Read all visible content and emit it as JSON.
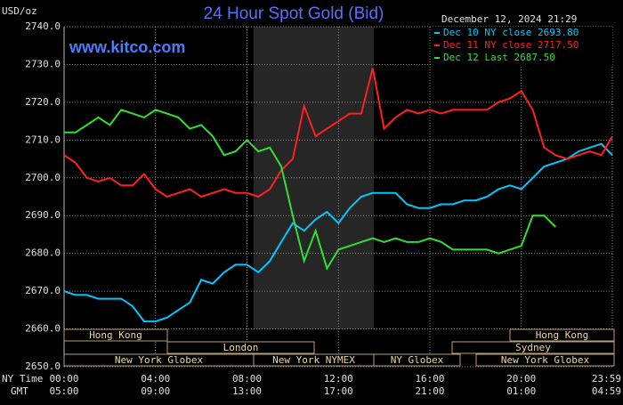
{
  "chart_data": {
    "type": "line",
    "title": "24 Hour Spot Gold (Bid)",
    "yunit": "USD/oz",
    "timestamp": "December 12, 2024 21:29",
    "source": "www.kitco.com",
    "xlabel": "NY Time",
    "x2label": "GMT",
    "x": [
      0,
      0.5,
      1,
      1.5,
      2,
      2.5,
      3,
      3.5,
      4,
      4.5,
      5,
      5.5,
      6,
      6.5,
      7,
      7.5,
      8,
      8.5,
      9,
      9.5,
      10,
      10.5,
      11,
      11.5,
      12,
      12.5,
      13,
      13.5,
      14,
      14.5,
      15,
      15.5,
      16,
      16.5,
      17,
      17.5,
      18,
      18.5,
      19,
      19.5,
      20,
      20.5,
      21,
      21.5,
      22,
      22.5,
      23,
      23.5,
      23.98
    ],
    "series": [
      {
        "name": "Dec 10 NY close 2693.80",
        "color": "#00c8ff",
        "values": [
          2670,
          2669,
          2669,
          2668,
          2668,
          2668,
          2666,
          2662,
          2662,
          2663,
          2665,
          2667,
          2673,
          2672,
          2675,
          2677,
          2677,
          2675,
          2678,
          2683,
          2688,
          2686,
          2689,
          2691,
          2688,
          2692,
          2695,
          2696,
          2696,
          2696,
          2693,
          2692,
          2692,
          2693,
          2693,
          2694,
          2694,
          2695,
          2697,
          2698,
          2697,
          2700,
          2703,
          2704,
          2705,
          2707,
          2708,
          2709,
          2706
        ]
      },
      {
        "name": "Dec 11 NY close 2717.50",
        "color": "#ff2020",
        "values": [
          2706,
          2704,
          2700,
          2699,
          2700,
          2698,
          2698,
          2701,
          2697,
          2695,
          2696,
          2697,
          2695,
          2696,
          2697,
          2696,
          2696,
          2695,
          2697,
          2702,
          2705,
          2719,
          2711,
          2713,
          2715,
          2717,
          2717,
          2729,
          2713,
          2716,
          2718,
          2717,
          2718,
          2717,
          2718,
          2718,
          2718,
          2718,
          2720,
          2721,
          2723,
          2718,
          2708,
          2706,
          2705,
          2706,
          2707,
          2706,
          2711
        ]
      },
      {
        "name": "Dec 12 Last 2687.50",
        "color": "#30e030",
        "values": [
          2712,
          2712,
          2714,
          2716,
          2714,
          2718,
          2717,
          2716,
          2718,
          2717,
          2716,
          2713,
          2714,
          2711,
          2706,
          2707,
          2710,
          2707,
          2708,
          2703,
          2690,
          2678,
          2686,
          2676,
          2681,
          2682,
          2683,
          2684,
          2683,
          2684,
          2683,
          2683,
          2684,
          2683,
          2681,
          2681,
          2681,
          2681,
          2680,
          2681,
          2682,
          2690,
          2690,
          2687,
          null,
          null,
          null,
          null,
          null
        ]
      }
    ],
    "xlim": [
      0,
      23.98
    ],
    "xticks": [
      {
        "value": 0,
        "label": "00:00"
      },
      {
        "value": 4,
        "label": "04:00"
      },
      {
        "value": 8,
        "label": "08:00"
      },
      {
        "value": 12,
        "label": "12:00"
      },
      {
        "value": 16,
        "label": "16:00"
      },
      {
        "value": 20,
        "label": "20:00"
      },
      {
        "value": 23.98,
        "label": "23:59"
      }
    ],
    "x2ticks": [
      {
        "value": 0,
        "label": "05:00"
      },
      {
        "value": 4,
        "label": "09:00"
      },
      {
        "value": 8,
        "label": "13:00"
      },
      {
        "value": 12,
        "label": "17:00"
      },
      {
        "value": 16,
        "label": "21:00"
      },
      {
        "value": 20,
        "label": "01:00"
      },
      {
        "value": 23.98,
        "label": "04:59"
      }
    ],
    "ylim": [
      2650,
      2740
    ],
    "yticks": [
      {
        "value": 2650,
        "label": "2650.0"
      },
      {
        "value": 2660,
        "label": "2660.0"
      },
      {
        "value": 2670,
        "label": "2670.0"
      },
      {
        "value": 2680,
        "label": "2680.0"
      },
      {
        "value": 2690,
        "label": "2690.0"
      },
      {
        "value": 2700,
        "label": "2700.0"
      },
      {
        "value": 2710,
        "label": "2710.0"
      },
      {
        "value": 2720,
        "label": "2720.0"
      },
      {
        "value": 2730,
        "label": "2730.0"
      },
      {
        "value": 2740,
        "label": "2740.0"
      }
    ],
    "grid": true,
    "sessions": [
      "Hong Kong",
      "London",
      "New York Globex",
      "New York NYMEX",
      "NY Globex",
      "Hong Kong",
      "Sydney",
      "New York Globex"
    ]
  }
}
